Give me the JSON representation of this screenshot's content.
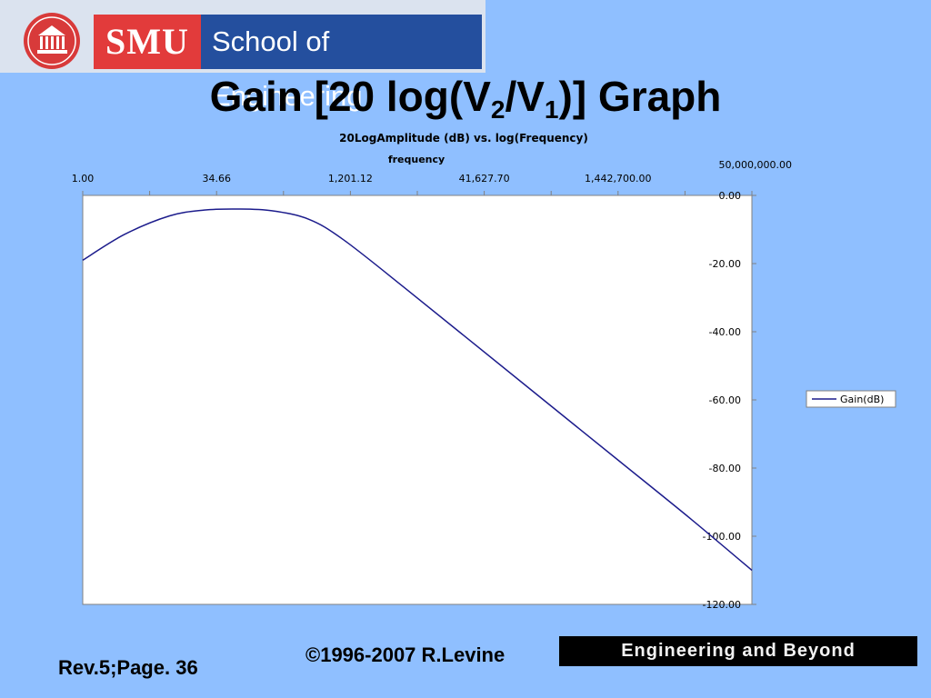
{
  "logo": {
    "smu_text": "SMU",
    "school_text": "School of Engineering",
    "colors": {
      "smu_red": "#e23b3b",
      "school_blue": "#244f9e",
      "seal_red": "#d83a3a"
    },
    "seal_icon": "university-seal-icon"
  },
  "slide": {
    "title_prefix": "Gain [20 log(V",
    "title_sub1": "2",
    "title_mid": "/V",
    "title_sub2": "1",
    "title_suffix": ")] Graph",
    "background": "#8fbfff"
  },
  "chart_data": {
    "type": "line",
    "title": "20LogAmplitude (dB) vs. log(Frequency)",
    "xlabel": "frequency",
    "ylabel": "",
    "x_scale": "log",
    "x_axis_position": "top",
    "y_axis_position": "right",
    "xlim": [
      1,
      50000000
    ],
    "ylim": [
      -120,
      0
    ],
    "x_tick_labels": [
      "1.00",
      "34.66",
      "1,201.12",
      "41,627.70",
      "1,442,700.00",
      "50,000,000.00"
    ],
    "x_ticks": [
      1,
      34.66,
      1201.12,
      41627.7,
      1442700,
      50000000
    ],
    "y_ticks": [
      0,
      -20,
      -40,
      -60,
      -80,
      -100,
      -120
    ],
    "y_tick_labels": [
      "0.00",
      "-20.00",
      "-40.00",
      "-60.00",
      "-80.00",
      "-100.00",
      "-120.00"
    ],
    "grid": false,
    "legend_position": "right",
    "line_color": "#1c1c8c",
    "series": [
      {
        "name": "Gain(dB)",
        "x": [
          1,
          3,
          10,
          25,
          60,
          150,
          400,
          1000,
          5000,
          30000,
          200000,
          1500000,
          10000000,
          50000000
        ],
        "y": [
          -19,
          -11.5,
          -6,
          -4.3,
          -4,
          -4.5,
          -7,
          -13,
          -27,
          -43,
          -60,
          -78,
          -95,
          -110
        ]
      }
    ]
  },
  "footer": {
    "rev": "Rev.5;Page. 36",
    "copyright": "©1996-2007 R.Levine",
    "banner": "Engineering and Beyond"
  }
}
